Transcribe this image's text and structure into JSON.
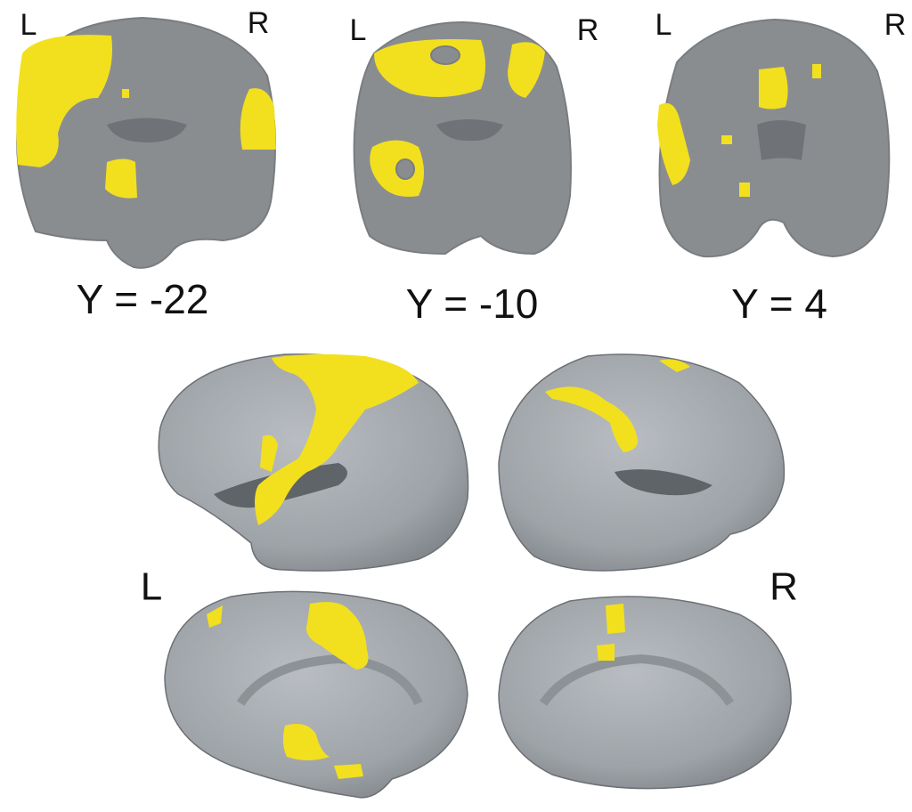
{
  "slices": [
    {
      "left": "L",
      "right": "R",
      "label": "Y = -22"
    },
    {
      "left": "L",
      "right": "R",
      "label": "Y = -10"
    },
    {
      "left": "L",
      "right": "R",
      "label": "Y = 4"
    }
  ],
  "surface": {
    "left": "L",
    "right": "R"
  }
}
